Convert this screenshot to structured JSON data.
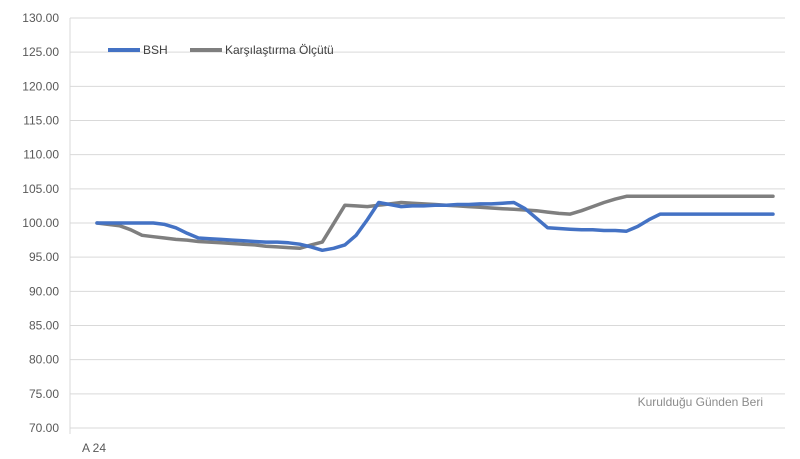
{
  "chart_data": {
    "type": "line",
    "title": "",
    "xlabel": "",
    "ylabel": "",
    "ylim": [
      70,
      130
    ],
    "ytick_step": 5,
    "yticks": [
      "130.00",
      "125.00",
      "120.00",
      "115.00",
      "110.00",
      "105.00",
      "100.00",
      "95.00",
      "90.00",
      "85.00",
      "80.00",
      "75.00",
      "70.00"
    ],
    "x_category_label": "A 24",
    "grid": true,
    "legend_position": "top-left",
    "annotation": "Kurulduğu Günden Beri",
    "series": [
      {
        "name": "BSH",
        "color": "#4472c4",
        "x": [
          0,
          1,
          2,
          3,
          4,
          5,
          6,
          7,
          8,
          9,
          10,
          11,
          12,
          13,
          14,
          15,
          16,
          17,
          18,
          19,
          20,
          21,
          22,
          23,
          24,
          25,
          26,
          27,
          28,
          29,
          30,
          31,
          32,
          33,
          34,
          35,
          36,
          37,
          38,
          39,
          40,
          41,
          42,
          43,
          44,
          45,
          46,
          47,
          48,
          49,
          50,
          51,
          52,
          53,
          54,
          55,
          56,
          57,
          58,
          59,
          60
        ],
        "values": [
          100.0,
          100.0,
          100.0,
          100.0,
          100.0,
          100.0,
          99.8,
          99.3,
          98.5,
          97.8,
          97.7,
          97.6,
          97.5,
          97.4,
          97.3,
          97.2,
          97.2,
          97.1,
          96.9,
          96.5,
          96.0,
          96.3,
          96.8,
          98.2,
          100.5,
          103.0,
          102.7,
          102.4,
          102.5,
          102.5,
          102.6,
          102.6,
          102.7,
          102.7,
          102.8,
          102.8,
          102.9,
          103.0,
          102.1,
          100.7,
          99.3,
          99.2,
          99.1,
          99.0,
          99.0,
          98.9,
          98.9,
          98.8,
          99.5,
          100.5,
          101.3,
          101.3,
          101.3,
          101.3,
          101.3,
          101.3,
          101.3,
          101.3,
          101.3,
          101.3,
          101.3
        ]
      },
      {
        "name": "Karşılaştırma Ölçütü",
        "color": "#7f7f7f",
        "x": [
          0,
          1,
          2,
          3,
          4,
          5,
          6,
          7,
          8,
          9,
          10,
          11,
          12,
          13,
          14,
          15,
          16,
          17,
          18,
          19,
          20,
          21,
          22,
          23,
          24,
          25,
          26,
          27,
          28,
          29,
          30,
          31,
          32,
          33,
          34,
          35,
          36,
          37,
          38,
          39,
          40,
          41,
          42,
          43,
          44,
          45,
          46,
          47,
          48,
          49,
          50,
          51,
          52,
          53,
          54,
          55,
          56,
          57,
          58,
          59,
          60
        ],
        "values": [
          100.0,
          99.8,
          99.6,
          99.0,
          98.2,
          98.0,
          97.8,
          97.6,
          97.5,
          97.3,
          97.2,
          97.1,
          97.0,
          96.9,
          96.8,
          96.6,
          96.5,
          96.4,
          96.3,
          96.8,
          97.2,
          99.9,
          102.6,
          102.5,
          102.4,
          102.6,
          102.8,
          103.0,
          102.9,
          102.8,
          102.7,
          102.6,
          102.5,
          102.4,
          102.3,
          102.2,
          102.1,
          102.0,
          101.9,
          101.8,
          101.6,
          101.4,
          101.3,
          101.8,
          102.4,
          103.0,
          103.5,
          103.9,
          103.9,
          103.9,
          103.9,
          103.9,
          103.9,
          103.9,
          103.9,
          103.9,
          103.9,
          103.9,
          103.9,
          103.9,
          103.9
        ]
      }
    ]
  }
}
